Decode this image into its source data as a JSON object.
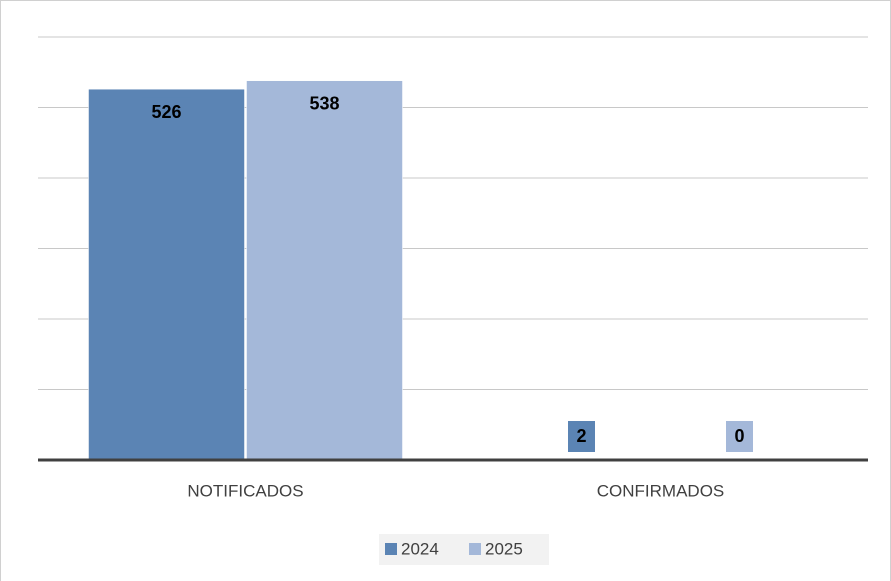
{
  "chart_data": {
    "type": "bar",
    "categories": [
      "NOTIFICADOS",
      "CONFIRMADOS"
    ],
    "series": [
      {
        "name": "2024",
        "color": "#5b84b4",
        "values": [
          526,
          2
        ]
      },
      {
        "name": "2025",
        "color": "#a4b8d9",
        "values": [
          538,
          0
        ]
      }
    ],
    "ylim": [
      0,
      600
    ],
    "yticks": [
      0,
      100,
      200,
      300,
      400,
      500,
      600
    ],
    "grid": true,
    "legend": "bottom"
  }
}
